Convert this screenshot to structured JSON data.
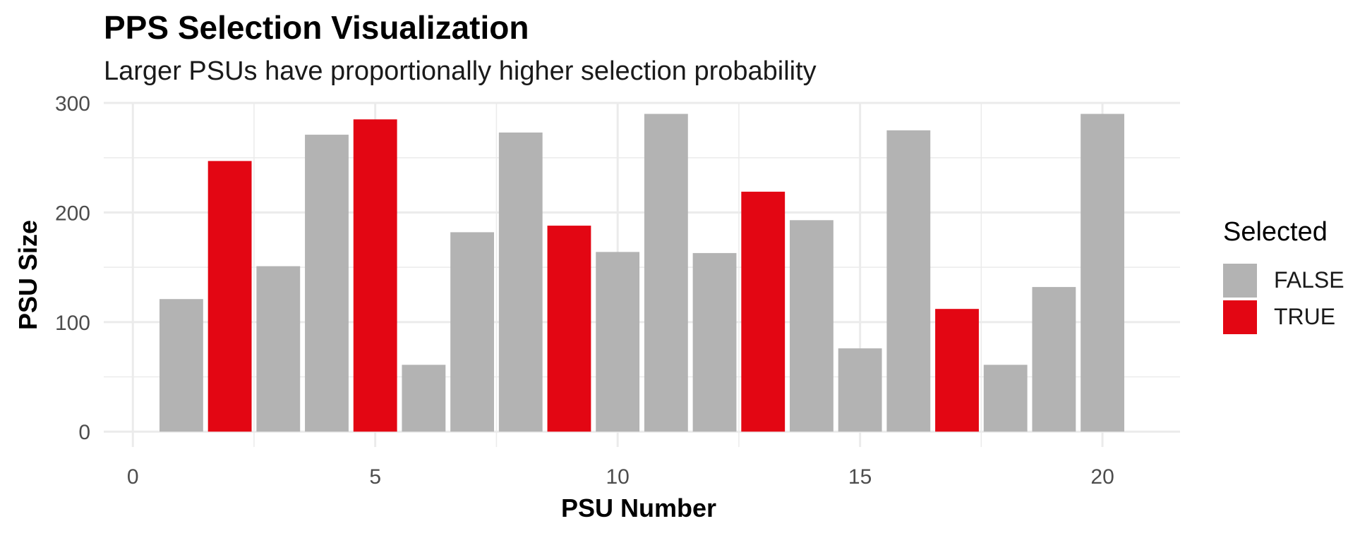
{
  "chart_data": {
    "type": "bar",
    "title": "PPS Selection Visualization",
    "subtitle": "Larger PSUs have proportionally higher selection probability",
    "xlabel": "PSU Number",
    "ylabel": "PSU Size",
    "xlim": [
      -0.6,
      21.6
    ],
    "ylim": [
      -14,
      300
    ],
    "x_ticks": [
      0,
      5,
      10,
      15,
      20
    ],
    "y_ticks": [
      0,
      100,
      200,
      300
    ],
    "x": [
      1,
      2,
      3,
      4,
      5,
      6,
      7,
      8,
      9,
      10,
      11,
      12,
      13,
      14,
      15,
      16,
      17,
      18,
      19,
      20
    ],
    "values": [
      121,
      247,
      151,
      271,
      285,
      61,
      182,
      273,
      188,
      164,
      290,
      163,
      219,
      193,
      76,
      275,
      112,
      61,
      132,
      290
    ],
    "selected": [
      false,
      true,
      false,
      false,
      true,
      false,
      false,
      false,
      true,
      false,
      false,
      false,
      true,
      false,
      false,
      false,
      true,
      false,
      false,
      false
    ],
    "grid": true,
    "legend": {
      "title": "Selected",
      "position": "right",
      "entries": [
        {
          "label": "FALSE",
          "color": "#b3b3b3"
        },
        {
          "label": "TRUE",
          "color": "#e30613"
        }
      ]
    }
  }
}
